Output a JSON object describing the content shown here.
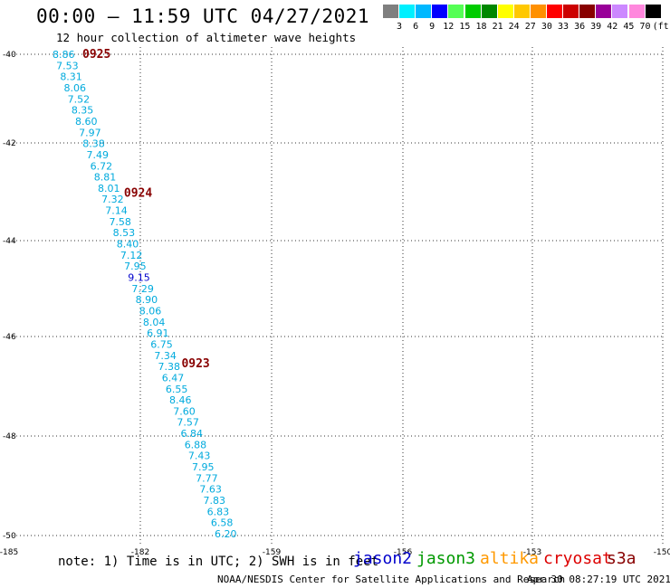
{
  "header": {
    "title": "00:00 – 11:59 UTC 04/27/2021",
    "subtitle": "12 hour collection of altimeter wave heights"
  },
  "color_scale": {
    "colors": [
      "#7f7f7f",
      "#00f0ff",
      "#00b8ff",
      "#0000ff",
      "#55ff55",
      "#00cc00",
      "#008800",
      "#ffff00",
      "#ffc800",
      "#ff9000",
      "#ff0000",
      "#cc0000",
      "#880000",
      "#990099",
      "#cc88ff",
      "#ff88dd",
      "#000000"
    ],
    "labels": [
      "3",
      "6",
      "9",
      "12",
      "15",
      "18",
      "21",
      "24",
      "27",
      "30",
      "33",
      "36",
      "39",
      "42",
      "45",
      "70",
      "(ft)"
    ]
  },
  "map": {
    "lon_ticks": [
      "-185",
      "-182",
      "-159",
      "-156",
      "-153",
      "-150"
    ],
    "lat_ticks": [
      "-40",
      "-42",
      "-44",
      "-46",
      "-48",
      "-50"
    ],
    "grid": "dotted"
  },
  "observations": [
    {
      "v": "8.86",
      "c": "#00aadd"
    },
    {
      "v": "7.53",
      "c": "#00aadd"
    },
    {
      "v": "8.31",
      "c": "#00aadd"
    },
    {
      "v": "8.06",
      "c": "#00aadd"
    },
    {
      "v": "7.52",
      "c": "#00aadd"
    },
    {
      "v": "8.35",
      "c": "#00aadd"
    },
    {
      "v": "8.60",
      "c": "#00aadd"
    },
    {
      "v": "7.97",
      "c": "#00aadd"
    },
    {
      "v": "8.38",
      "c": "#00aadd"
    },
    {
      "v": "7.49",
      "c": "#00aadd"
    },
    {
      "v": "6.72",
      "c": "#00aadd"
    },
    {
      "v": "8.81",
      "c": "#00aadd"
    },
    {
      "v": "8.01",
      "c": "#00aadd"
    },
    {
      "v": "7.32",
      "c": "#00aadd"
    },
    {
      "v": "7.14",
      "c": "#00aadd"
    },
    {
      "v": "7.58",
      "c": "#00aadd"
    },
    {
      "v": "8.53",
      "c": "#00aadd"
    },
    {
      "v": "8.40",
      "c": "#00aadd"
    },
    {
      "v": "7.12",
      "c": "#00aadd"
    },
    {
      "v": "7.95",
      "c": "#00aadd"
    },
    {
      "v": "9.15",
      "c": "#0000cc"
    },
    {
      "v": "7.29",
      "c": "#00aadd"
    },
    {
      "v": "8.90",
      "c": "#00aadd"
    },
    {
      "v": "8.06",
      "c": "#00aadd"
    },
    {
      "v": "8.04",
      "c": "#00aadd"
    },
    {
      "v": "6.91",
      "c": "#00aadd"
    },
    {
      "v": "6.75",
      "c": "#00aadd"
    },
    {
      "v": "7.34",
      "c": "#00aadd"
    },
    {
      "v": "7.38",
      "c": "#00aadd"
    },
    {
      "v": "6.47",
      "c": "#00aadd"
    },
    {
      "v": "6.55",
      "c": "#00aadd"
    },
    {
      "v": "8.46",
      "c": "#00aadd"
    },
    {
      "v": "7.60",
      "c": "#00aadd"
    },
    {
      "v": "7.57",
      "c": "#00aadd"
    },
    {
      "v": "6.84",
      "c": "#00aadd"
    },
    {
      "v": "6.88",
      "c": "#00aadd"
    },
    {
      "v": "7.43",
      "c": "#00aadd"
    },
    {
      "v": "7.95",
      "c": "#00aadd"
    },
    {
      "v": "7.77",
      "c": "#00aadd"
    },
    {
      "v": "7.63",
      "c": "#00aadd"
    },
    {
      "v": "7.83",
      "c": "#00aadd"
    },
    {
      "v": "6.83",
      "c": "#00aadd"
    },
    {
      "v": "6.58",
      "c": "#00aadd"
    },
    {
      "v": "6.20",
      "c": "#00aadd"
    }
  ],
  "time_labels": [
    "0925",
    "0924",
    "0923"
  ],
  "time_label_color": "#880000",
  "footer": {
    "note": "note:  1) Time is in UTC;  2) SWH is in feet",
    "satellites": [
      {
        "name": "jason2",
        "color": "#0000cc"
      },
      {
        "name": "jason3",
        "color": "#009900"
      },
      {
        "name": "altika",
        "color": "#ff9900"
      },
      {
        "name": "cryosat",
        "color": "#dd0000"
      },
      {
        "name": "s3a",
        "color": "#880000"
      }
    ],
    "credit": "NOAA/NESDIS Center for Satellite Applications and Research",
    "timestamp": "Apr 30 08:27:19 UTC 2021"
  }
}
